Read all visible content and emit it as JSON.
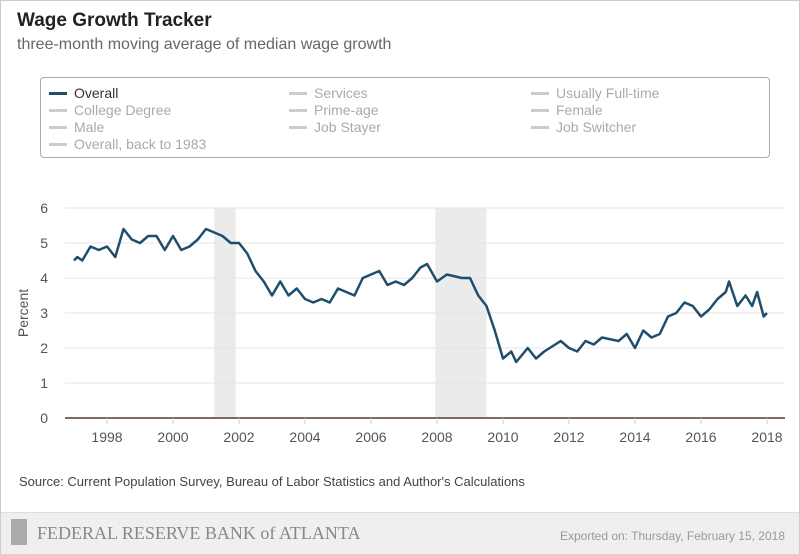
{
  "title": "Wage Growth Tracker",
  "subtitle": "three-month moving average of median wage growth",
  "legend": [
    {
      "label": "Overall",
      "active": true
    },
    {
      "label": "Services",
      "active": false
    },
    {
      "label": "Usually Full-time",
      "active": false
    },
    {
      "label": "College Degree",
      "active": false
    },
    {
      "label": "Prime-age",
      "active": false
    },
    {
      "label": "Female",
      "active": false
    },
    {
      "label": "Male",
      "active": false
    },
    {
      "label": "Job Stayer",
      "active": false
    },
    {
      "label": "Job Switcher",
      "active": false
    },
    {
      "label": "Overall, back to 1983",
      "active": false
    }
  ],
  "source": "Source: Current Population Survey, Bureau of Labor Statistics and Author's Calculations",
  "footer": {
    "logo_text": "FEDERAL RESERVE BANK of ATLANTA",
    "exported": "Exported on: Thursday, February 15, 2018"
  },
  "colors": {
    "line": "#1f4e6b",
    "recession": "#ebebeb",
    "axis": "#7a6a60"
  },
  "chart_data": {
    "type": "line",
    "title": "Wage Growth Tracker",
    "xlabel": "",
    "ylabel": "Percent",
    "xlim": [
      1997,
      2018.2
    ],
    "ylim": [
      0,
      6
    ],
    "grid": true,
    "xticks": [
      "1998",
      "2000",
      "2002",
      "2004",
      "2006",
      "2008",
      "2010",
      "2012",
      "2014",
      "2016",
      "2018"
    ],
    "yticks": [
      "0",
      "1",
      "2",
      "3",
      "4",
      "5",
      "6"
    ],
    "recessions": [
      [
        2001.25,
        2001.9
      ],
      [
        2007.95,
        2009.5
      ]
    ],
    "series": [
      {
        "name": "Overall",
        "x": [
          1997.0,
          1997.1,
          1997.25,
          1997.5,
          1997.75,
          1998.0,
          1998.25,
          1998.5,
          1998.75,
          1999.0,
          1999.25,
          1999.5,
          1999.75,
          2000.0,
          2000.25,
          2000.5,
          2000.75,
          2001.0,
          2001.25,
          2001.5,
          2001.75,
          2002.0,
          2002.25,
          2002.5,
          2002.75,
          2003.0,
          2003.25,
          2003.5,
          2003.75,
          2004.0,
          2004.25,
          2004.5,
          2004.75,
          2005.0,
          2005.25,
          2005.5,
          2005.75,
          2006.0,
          2006.25,
          2006.5,
          2006.75,
          2007.0,
          2007.25,
          2007.5,
          2007.7,
          2008.0,
          2008.3,
          2008.75,
          2009.0,
          2009.25,
          2009.5,
          2009.75,
          2010.0,
          2010.25,
          2010.4,
          2010.75,
          2011.0,
          2011.25,
          2011.75,
          2012.0,
          2012.25,
          2012.5,
          2012.75,
          2013.0,
          2013.5,
          2013.75,
          2014.0,
          2014.25,
          2014.5,
          2014.75,
          2015.0,
          2015.25,
          2015.5,
          2015.75,
          2016.0,
          2016.25,
          2016.5,
          2016.75,
          2016.85,
          2017.1,
          2017.35,
          2017.55,
          2017.7,
          2017.9,
          2018.0
        ],
        "y": [
          4.5,
          4.6,
          4.5,
          4.9,
          4.8,
          4.9,
          4.6,
          5.4,
          5.1,
          5.0,
          5.2,
          5.2,
          4.8,
          5.2,
          4.8,
          4.9,
          5.1,
          5.4,
          5.3,
          5.2,
          5.0,
          5.0,
          4.7,
          4.2,
          3.9,
          3.5,
          3.9,
          3.5,
          3.7,
          3.4,
          3.3,
          3.4,
          3.3,
          3.7,
          3.6,
          3.5,
          4.0,
          4.1,
          4.2,
          3.8,
          3.9,
          3.8,
          4.0,
          4.3,
          4.4,
          3.9,
          4.1,
          4.0,
          4.0,
          3.5,
          3.2,
          2.5,
          1.7,
          1.9,
          1.6,
          2.0,
          1.7,
          1.9,
          2.2,
          2.0,
          1.9,
          2.2,
          2.1,
          2.3,
          2.2,
          2.4,
          2.0,
          2.5,
          2.3,
          2.4,
          2.9,
          3.0,
          3.3,
          3.2,
          2.9,
          3.1,
          3.4,
          3.6,
          3.9,
          3.2,
          3.5,
          3.2,
          3.6,
          2.9,
          3.0
        ]
      }
    ]
  }
}
